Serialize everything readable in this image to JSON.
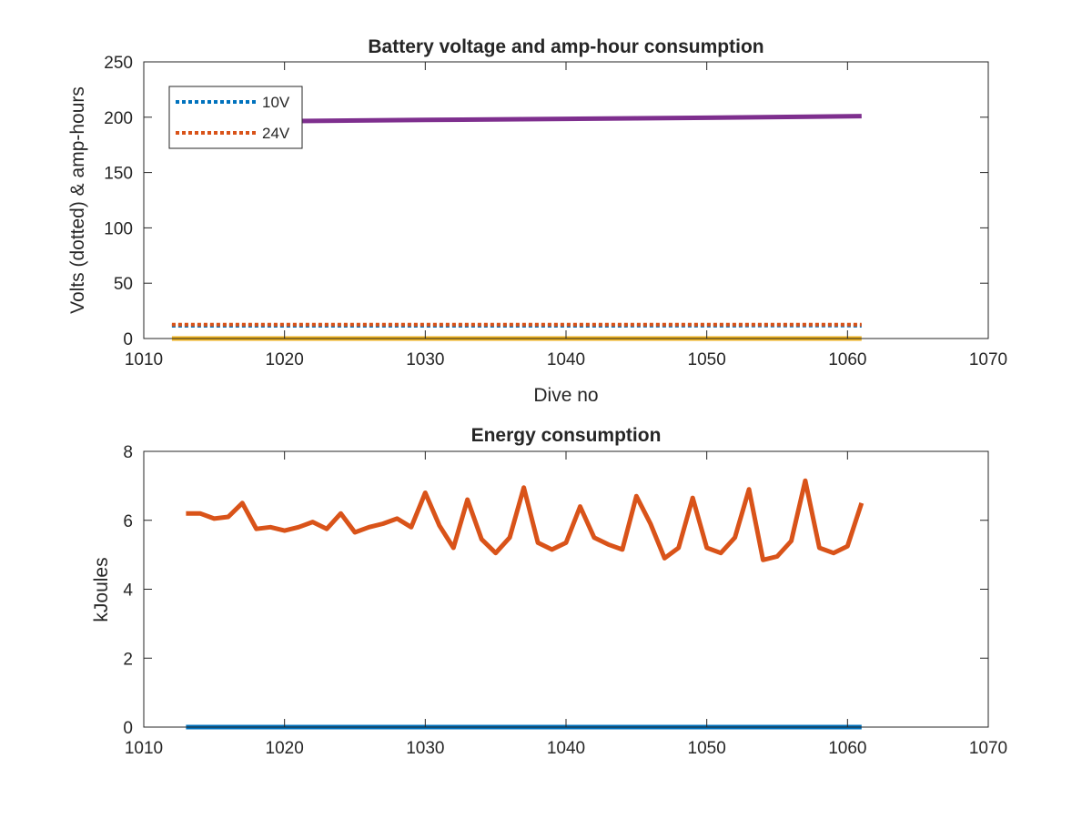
{
  "chart_data": [
    {
      "type": "line",
      "title": "Battery voltage and amp-hour consumption",
      "xlabel": "Dive no",
      "ylabel": "Volts (dotted) & amp-hours",
      "xlim": [
        1010,
        1070
      ],
      "ylim": [
        0,
        250
      ],
      "xticks": [
        1010,
        1020,
        1030,
        1040,
        1050,
        1060,
        1070
      ],
      "yticks": [
        0,
        50,
        100,
        150,
        200,
        250
      ],
      "grid": false,
      "legend": {
        "placement": "top-left",
        "entries": [
          "10V",
          "24V"
        ]
      },
      "series": [
        {
          "name": "10V",
          "style": "dotted",
          "color": "#0072BD",
          "x": [
            1012,
            1040,
            1060,
            1061
          ],
          "y": [
            11.5,
            11.5,
            11.8,
            11.5
          ]
        },
        {
          "name": "24V",
          "style": "dotted",
          "color": "#D95319",
          "x": [
            1012,
            1061
          ],
          "y": [
            12.5,
            12.5
          ]
        },
        {
          "style": "solid",
          "color": "#7E2F8E",
          "x": [
            1012,
            1020,
            1030,
            1040,
            1050,
            1061
          ],
          "y": [
            195,
            196.5,
            197.5,
            198.5,
            199.5,
            201
          ]
        },
        {
          "style": "solid",
          "color": "#EDB120",
          "x": [
            1012,
            1061
          ],
          "y": [
            0,
            0
          ]
        }
      ]
    },
    {
      "type": "line",
      "title": "Energy consumption",
      "xlabel": "",
      "ylabel": "kJoules",
      "xlim": [
        1010,
        1070
      ],
      "ylim": [
        0,
        8
      ],
      "xticks": [
        1010,
        1020,
        1030,
        1040,
        1050,
        1060,
        1070
      ],
      "yticks": [
        0,
        2,
        4,
        6,
        8
      ],
      "grid": false,
      "series": [
        {
          "style": "solid",
          "color": "#D95319",
          "x": [
            1013,
            1014,
            1015,
            1016,
            1017,
            1018,
            1019,
            1020,
            1021,
            1022,
            1023,
            1024,
            1025,
            1026,
            1027,
            1028,
            1029,
            1030,
            1031,
            1032,
            1033,
            1034,
            1035,
            1036,
            1037,
            1038,
            1039,
            1040,
            1041,
            1042,
            1043,
            1044,
            1045,
            1046,
            1047,
            1048,
            1049,
            1050,
            1051,
            1052,
            1053,
            1054,
            1055,
            1056,
            1057,
            1058,
            1059,
            1060,
            1061
          ],
          "y": [
            6.2,
            6.2,
            6.05,
            6.1,
            6.5,
            5.75,
            5.8,
            5.7,
            5.8,
            5.95,
            5.75,
            6.2,
            5.65,
            5.8,
            5.9,
            6.05,
            5.8,
            6.8,
            5.85,
            5.2,
            6.6,
            5.45,
            5.05,
            5.5,
            6.95,
            5.35,
            5.15,
            5.35,
            6.4,
            5.5,
            5.3,
            5.15,
            6.7,
            5.9,
            4.9,
            5.2,
            6.65,
            5.2,
            5.05,
            5.5,
            6.9,
            4.85,
            4.95,
            5.4,
            7.15,
            5.2,
            5.05,
            5.25,
            6.5
          ]
        },
        {
          "style": "solid",
          "color": "#0072BD",
          "x": [
            1013,
            1061
          ],
          "y": [
            0,
            0
          ]
        }
      ]
    }
  ]
}
